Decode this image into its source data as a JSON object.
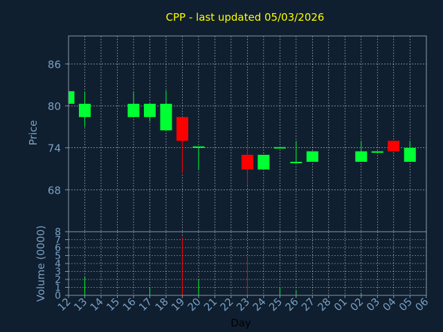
{
  "chart_data": {
    "type": "candlestick",
    "title": "CPP - last updated 05/03/2026",
    "xlabel": "Day",
    "price_panel": {
      "ylabel": "Price",
      "ylim": [
        62,
        90
      ],
      "yticks": [
        "86",
        "80",
        "74",
        "68"
      ],
      "ytick_values": [
        86,
        80,
        74,
        68
      ]
    },
    "volume_panel": {
      "ylabel": "Volume (0000)",
      "ylim": [
        0,
        8
      ],
      "yticks": [
        "0",
        "1",
        "2",
        "3",
        "4",
        "5",
        "6",
        "7",
        "8"
      ],
      "ytick_values": [
        0,
        1,
        2,
        3,
        4,
        5,
        6,
        7,
        8
      ]
    },
    "x_ticks": [
      "12",
      "13",
      "14",
      "15",
      "16",
      "17",
      "18",
      "19",
      "20",
      "21",
      "22",
      "23",
      "24",
      "25",
      "26",
      "27",
      "28",
      "01",
      "02",
      "03",
      "04",
      "05",
      "06"
    ],
    "candles": [
      {
        "x": "12",
        "open": 80.3,
        "close": 82.1,
        "high": 82.1,
        "low": 80.3,
        "volume": 0
      },
      {
        "x": "13",
        "open": 78.4,
        "close": 80.3,
        "high": 82.0,
        "low": 77.0,
        "volume": 2.3
      },
      {
        "x": "16",
        "open": 78.4,
        "close": 80.3,
        "high": 82.1,
        "low": 78.4,
        "volume": 0
      },
      {
        "x": "17",
        "open": 78.4,
        "close": 80.3,
        "high": 80.3,
        "low": 77.8,
        "volume": 1.0
      },
      {
        "x": "18",
        "open": 76.5,
        "close": 80.3,
        "high": 82.2,
        "low": 76.5,
        "volume": 0
      },
      {
        "x": "19",
        "open": 78.4,
        "close": 75.0,
        "high": 78.4,
        "low": 70.4,
        "volume": 7.3
      },
      {
        "x": "20",
        "open": 74.0,
        "close": 74.2,
        "high": 74.2,
        "low": 70.8,
        "volume": 2.0
      },
      {
        "x": "23",
        "open": 73.0,
        "close": 70.9,
        "high": 74.5,
        "low": 68.6,
        "volume": 4.8
      },
      {
        "x": "24",
        "open": 70.9,
        "close": 73.0,
        "high": 73.0,
        "low": 70.9,
        "volume": 0
      },
      {
        "x": "25",
        "open": 74.0,
        "close": 74.1,
        "high": 74.1,
        "low": 74.0,
        "volume": 1.0
      },
      {
        "x": "26",
        "open": 71.8,
        "close": 72.0,
        "high": 75.0,
        "low": 71.8,
        "volume": 0.6
      },
      {
        "x": "27",
        "open": 72.0,
        "close": 73.5,
        "high": 73.5,
        "low": 72.0,
        "volume": 0
      },
      {
        "x": "02",
        "open": 72.0,
        "close": 73.5,
        "high": 75.0,
        "low": 72.0,
        "volume": 0.3
      },
      {
        "x": "03",
        "open": 73.3,
        "close": 73.5,
        "high": 73.5,
        "low": 73.3,
        "volume": 0
      },
      {
        "x": "04",
        "open": 75.0,
        "close": 73.5,
        "high": 75.0,
        "low": 73.5,
        "volume": 0
      },
      {
        "x": "05",
        "open": 72.0,
        "close": 74.0,
        "high": 75.0,
        "low": 72.0,
        "volume": 0
      }
    ],
    "colors": {
      "background": "#0f1f2f",
      "up": "#00ff33",
      "down": "#ff0000",
      "grid": "#ffffff",
      "frame": "#8899aa",
      "axis_text": "#7aa0c4",
      "title": "#ffff00",
      "xlabel": "#000000"
    },
    "grid": true
  }
}
